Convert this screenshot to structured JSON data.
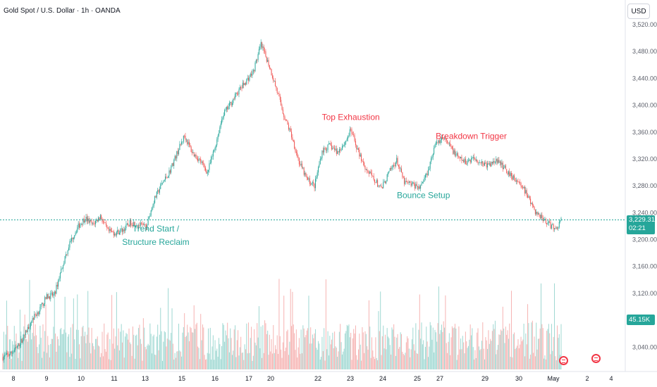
{
  "header": {
    "title": "Gold Spot / U.S. Dollar · 1h · OANDA",
    "currency": "USD"
  },
  "price_badge": {
    "price": "3,229.310",
    "countdown": "02:21"
  },
  "volume_badge": {
    "value": "45.15K"
  },
  "colors": {
    "up": "#26a69a",
    "down": "#ef5350",
    "up_vol": "#9fd8d2",
    "down_vol": "#f6b3b2",
    "annotation_red": "#f23645",
    "annotation_green": "#26a69a",
    "price_line": "#26a69a"
  },
  "icons": {
    "events": [
      "red-flag-event-icon",
      "red-flag-event-icon"
    ]
  },
  "chart_data": {
    "type": "candlestick",
    "title": "Gold Spot / U.S. Dollar · 1h · OANDA",
    "x_ticks": [
      "8",
      "9",
      "10",
      "11",
      "13",
      "15",
      "16",
      "17",
      "20",
      "22",
      "23",
      "24",
      "25",
      "27",
      "29",
      "30",
      "May",
      "2",
      "4"
    ],
    "y_ticks": [
      "3,520.000",
      "3,480.000",
      "3,440.000",
      "3,400.000",
      "3,360.000",
      "3,320.000",
      "3,280.000",
      "3,240.000",
      "3,200.000",
      "3,160.000",
      "3,120.000",
      "3,040.000"
    ],
    "y_range": [
      3023,
      3532
    ],
    "last_price": 3229.31,
    "volume_last": "45.15K",
    "path_anchors": [
      [
        0,
        3025
      ],
      [
        8,
        3030
      ],
      [
        14,
        3038
      ],
      [
        22,
        3055
      ],
      [
        30,
        3080
      ],
      [
        38,
        3095
      ],
      [
        46,
        3115
      ],
      [
        54,
        3118
      ],
      [
        62,
        3160
      ],
      [
        70,
        3195
      ],
      [
        78,
        3218
      ],
      [
        86,
        3232
      ],
      [
        94,
        3222
      ],
      [
        102,
        3235
      ],
      [
        110,
        3212
      ],
      [
        118,
        3210
      ],
      [
        126,
        3215
      ],
      [
        134,
        3226
      ],
      [
        142,
        3222
      ],
      [
        150,
        3218
      ],
      [
        158,
        3258
      ],
      [
        166,
        3282
      ],
      [
        174,
        3300
      ],
      [
        182,
        3328
      ],
      [
        190,
        3355
      ],
      [
        198,
        3330
      ],
      [
        206,
        3318
      ],
      [
        214,
        3300
      ],
      [
        222,
        3338
      ],
      [
        230,
        3385
      ],
      [
        238,
        3402
      ],
      [
        246,
        3420
      ],
      [
        254,
        3435
      ],
      [
        262,
        3450
      ],
      [
        270,
        3490
      ],
      [
        278,
        3462
      ],
      [
        286,
        3425
      ],
      [
        294,
        3385
      ],
      [
        302,
        3355
      ],
      [
        310,
        3315
      ],
      [
        318,
        3290
      ],
      [
        326,
        3280
      ],
      [
        334,
        3332
      ],
      [
        342,
        3340
      ],
      [
        350,
        3330
      ],
      [
        358,
        3345
      ],
      [
        364,
        3363
      ],
      [
        372,
        3330
      ],
      [
        380,
        3305
      ],
      [
        388,
        3290
      ],
      [
        396,
        3275
      ],
      [
        404,
        3300
      ],
      [
        412,
        3318
      ],
      [
        420,
        3285
      ],
      [
        428,
        3282
      ],
      [
        436,
        3278
      ],
      [
        444,
        3300
      ],
      [
        452,
        3340
      ],
      [
        460,
        3352
      ],
      [
        468,
        3338
      ],
      [
        476,
        3322
      ],
      [
        484,
        3315
      ],
      [
        492,
        3322
      ],
      [
        500,
        3315
      ],
      [
        508,
        3310
      ],
      [
        516,
        3318
      ],
      [
        524,
        3308
      ],
      [
        532,
        3295
      ],
      [
        540,
        3285
      ],
      [
        548,
        3268
      ],
      [
        556,
        3242
      ],
      [
        564,
        3233
      ],
      [
        572,
        3222
      ],
      [
        578,
        3215
      ],
      [
        584,
        3229
      ]
    ],
    "annotations": [
      {
        "text": "Top Exhaustion",
        "x_index": 364,
        "price": 3378,
        "color": "red"
      },
      {
        "text": "Breakdown Trigger",
        "x_index": 490,
        "price": 3350,
        "color": "red"
      },
      {
        "text": "Bounce Setup",
        "x_index": 440,
        "price": 3262,
        "color": "green"
      },
      {
        "text": "Trend Start /",
        "x_index": 160,
        "price": 3212,
        "color": "green"
      },
      {
        "text": "Structure Reclaim",
        "x_index": 160,
        "price": 3192,
        "color": "green"
      }
    ]
  }
}
